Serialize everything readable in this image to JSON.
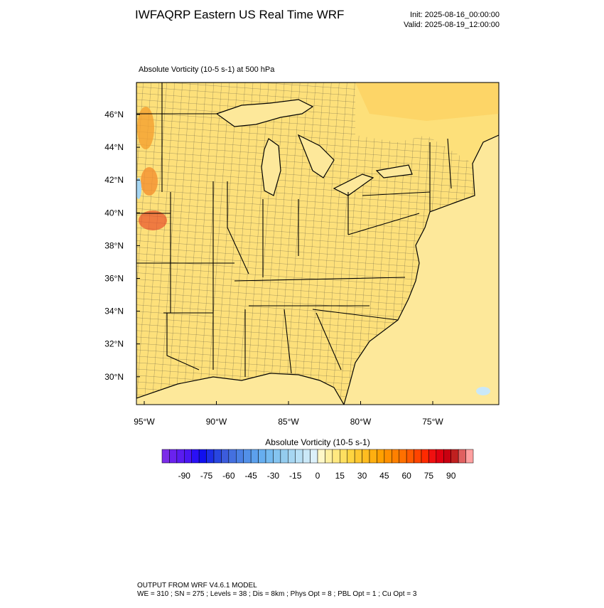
{
  "header": {
    "title": "IWFAQRP Eastern US Real Time WRF",
    "init": "Init: 2025-08-16_00:00:00",
    "valid": "Valid: 2025-08-19_12:00:00"
  },
  "map": {
    "subtitle": "Absolute Vorticity   (10-5 s-1)     at   500 hPa",
    "lat_labels": [
      "46°N",
      "44°N",
      "42°N",
      "40°N",
      "38°N",
      "36°N",
      "34°N",
      "32°N",
      "30°N"
    ],
    "lon_labels": [
      "95°W",
      "90°W",
      "85°W",
      "80°W",
      "75°W"
    ]
  },
  "colorbar": {
    "title": "Absolute Vorticity  (10-5 s-1)",
    "labels": [
      "-90",
      "-75",
      "-60",
      "-45",
      "-30",
      "-15",
      "0",
      "15",
      "30",
      "45",
      "60",
      "75",
      "90"
    ],
    "colors": [
      "#7b2ce8",
      "#6a22ee",
      "#5a1cf0",
      "#4a16f2",
      "#2a10f5",
      "#1010f0",
      "#1c2ee6",
      "#2846e0",
      "#3c5cdc",
      "#4470e0",
      "#4a80e4",
      "#5290e8",
      "#5ca0ec",
      "#66aef0",
      "#74baf0",
      "#84c4f0",
      "#94ccee",
      "#a6d6f2",
      "#b8e0f6",
      "#cae8f8",
      "#dcf0fa",
      "#fff8c8",
      "#fff0a0",
      "#ffe880",
      "#ffdf60",
      "#ffd440",
      "#ffc830",
      "#ffbc20",
      "#ffaf10",
      "#ffa000",
      "#ff9000",
      "#ff8000",
      "#ff7000",
      "#ff5a00",
      "#ff4400",
      "#ff2a00",
      "#f01010",
      "#e00010",
      "#c80010",
      "#c02020",
      "#e06060",
      "#ffa0a0"
    ]
  },
  "footer": {
    "line1": "OUTPUT FROM WRF V4.6.1 MODEL",
    "line2": "WE = 310 ; SN = 275 ; Levels = 38 ; Dis = 8km ; Phys Opt = 8 ; PBL Opt = 1 ; Cu Opt = 3"
  }
}
